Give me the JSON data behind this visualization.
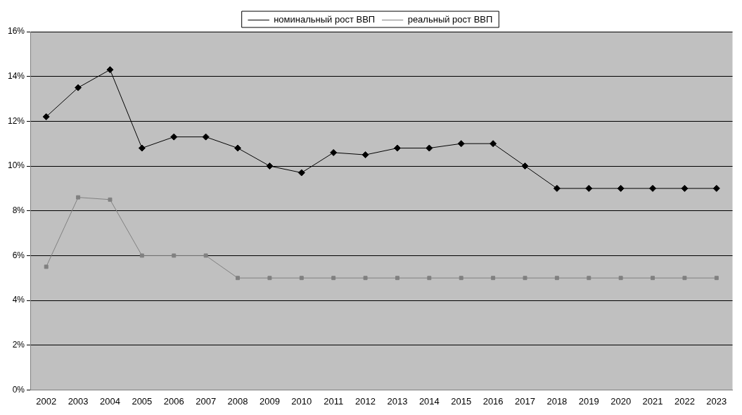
{
  "chart_data": {
    "type": "line",
    "categories": [
      "2002",
      "2003",
      "2004",
      "2005",
      "2006",
      "2007",
      "2008",
      "2009",
      "2010",
      "2011",
      "2012",
      "2013",
      "2014",
      "2015",
      "2016",
      "2017",
      "2018",
      "2019",
      "2020",
      "2021",
      "2022",
      "2023"
    ],
    "series": [
      {
        "name": "номинальный рост ВВП",
        "color": "#000000",
        "marker": "diamond",
        "values": [
          12.2,
          13.5,
          14.3,
          10.8,
          11.3,
          11.3,
          10.8,
          10.0,
          9.7,
          10.6,
          10.5,
          10.8,
          10.8,
          11.0,
          11.0,
          10.0,
          9.0,
          9.0,
          9.0,
          9.0,
          9.0,
          9.0
        ]
      },
      {
        "name": "реальный рост ВВП",
        "color": "#808080",
        "marker": "square",
        "values": [
          5.5,
          8.6,
          8.5,
          6.0,
          6.0,
          6.0,
          5.0,
          5.0,
          5.0,
          5.0,
          5.0,
          5.0,
          5.0,
          5.0,
          5.0,
          5.0,
          5.0,
          5.0,
          5.0,
          5.0,
          5.0,
          5.0
        ]
      }
    ],
    "ylim": [
      0,
      16
    ],
    "yticks": [
      {
        "value": 0,
        "label": "0%"
      },
      {
        "value": 2,
        "label": "2%"
      },
      {
        "value": 4,
        "label": "4%"
      },
      {
        "value": 6,
        "label": "6%"
      },
      {
        "value": 8,
        "label": "8%"
      },
      {
        "value": 10,
        "label": "10%"
      },
      {
        "value": 12,
        "label": "12%"
      },
      {
        "value": 14,
        "label": "14%"
      },
      {
        "value": 16,
        "label": "16%"
      }
    ],
    "grid": "y",
    "legend": "top",
    "line_style": "solid"
  }
}
